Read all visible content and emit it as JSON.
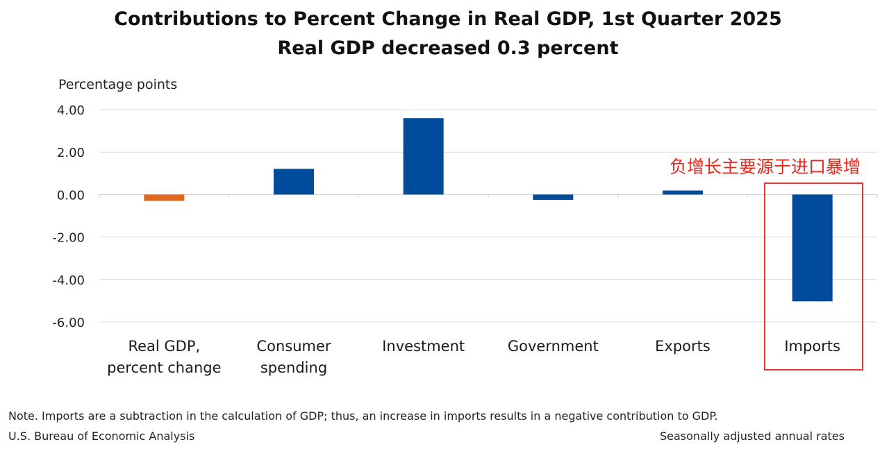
{
  "chart_data": {
    "type": "bar",
    "title": "Contributions to Percent Change in Real GDP, 1st Quarter 2025",
    "subtitle": "Real GDP decreased 0.3 percent",
    "ylabel": "Percentage points",
    "xlabel": "",
    "categories": [
      [
        "Real GDP,",
        "percent change"
      ],
      [
        "Consumer",
        "spending"
      ],
      [
        "Investment"
      ],
      [
        "Government"
      ],
      [
        "Exports"
      ],
      [
        "Imports"
      ]
    ],
    "values": [
      -0.3,
      1.21,
      3.6,
      -0.25,
      0.19,
      -5.03
    ],
    "bar_colors": [
      "#e0691f",
      "#004b9b",
      "#004b9b",
      "#004b9b",
      "#004b9b",
      "#004b9b"
    ],
    "yticks": [
      "4.00",
      "2.00",
      "0.00",
      "-2.00",
      "-4.00",
      "-6.00"
    ],
    "ytick_values": [
      4,
      2,
      0,
      -2,
      -4,
      -6
    ],
    "ylim": [
      -6,
      4
    ],
    "grid": true
  },
  "annotation": {
    "text": "负增长主要源于进口暴增",
    "color": "#e8281f"
  },
  "footer": {
    "note": "Note. Imports are a subtraction in the calculation of GDP; thus, an increase in imports results in a negative contribution to GDP.",
    "source": "U.S. Bureau of Economic Analysis",
    "rates": "Seasonally adjusted annual rates"
  }
}
